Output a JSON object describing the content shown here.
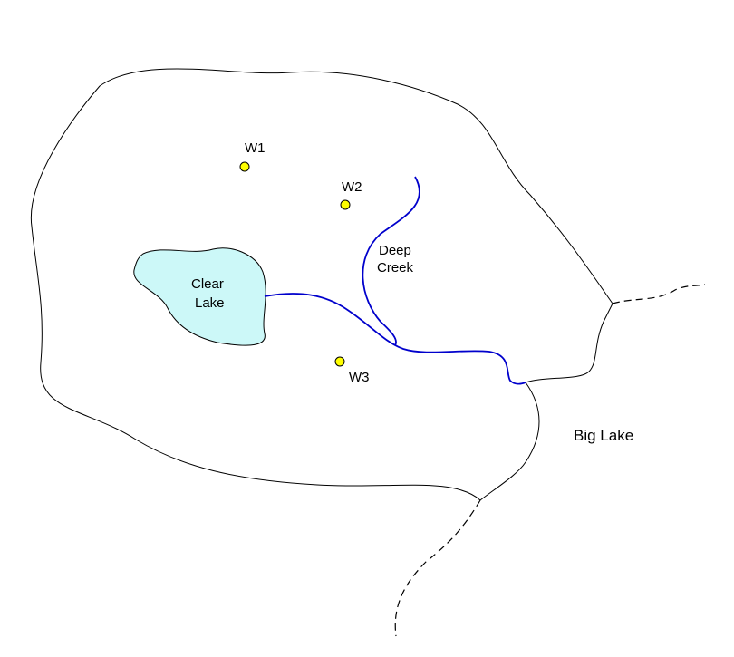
{
  "colors": {
    "boundary": "#000000",
    "stream": "#0000cc",
    "lake_fill": "#ccf8f8",
    "well_fill": "#ffff00"
  },
  "labels": {
    "wells": [
      "W1",
      "W2",
      "W3"
    ],
    "clear_lake": [
      "Clear",
      "Lake"
    ],
    "deep_creek": [
      "Deep",
      "Creek"
    ],
    "big_lake": "Big Lake"
  }
}
